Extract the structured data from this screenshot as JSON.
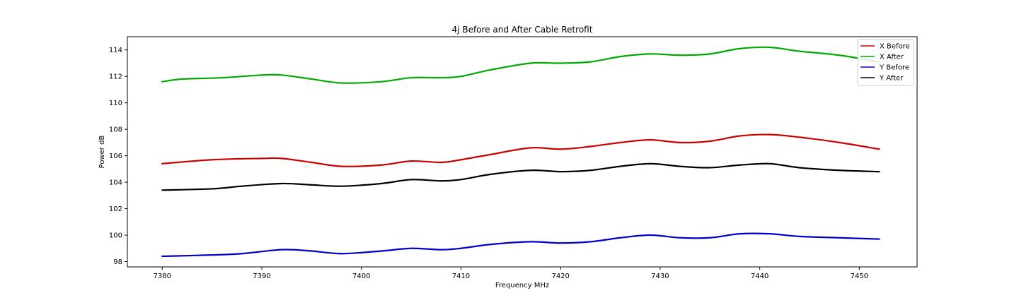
{
  "chart_data": {
    "type": "line",
    "title": "4j Before and After Cable Retrofit",
    "xlabel": "Frequency MHz",
    "ylabel": "Power dB",
    "xlim": [
      7376.5,
      7455.8
    ],
    "ylim": [
      97.6,
      115.0
    ],
    "xticks": [
      7380,
      7390,
      7400,
      7410,
      7420,
      7430,
      7440,
      7450
    ],
    "yticks": [
      98,
      100,
      102,
      104,
      106,
      108,
      110,
      112,
      114
    ],
    "grid": false,
    "legend_position": "top-right",
    "series": [
      {
        "name": "X Before",
        "color": "#cc0000",
        "x": [
          7380,
          7385,
          7390,
          7392,
          7395,
          7398,
          7402,
          7405,
          7408,
          7410,
          7413,
          7417,
          7420,
          7423,
          7426,
          7429,
          7432,
          7435,
          7438,
          7441,
          7444,
          7448,
          7452
        ],
        "y": [
          105.4,
          105.7,
          105.8,
          105.8,
          105.5,
          105.2,
          105.3,
          105.6,
          105.5,
          105.7,
          106.1,
          106.6,
          106.5,
          106.7,
          107.0,
          107.2,
          107.0,
          107.1,
          107.5,
          107.6,
          107.4,
          107.0,
          106.5
        ]
      },
      {
        "name": "X After",
        "color": "#00aa00",
        "x": [
          7380,
          7382,
          7386,
          7390,
          7392,
          7395,
          7398,
          7402,
          7405,
          7408,
          7410,
          7413,
          7417,
          7420,
          7423,
          7426,
          7429,
          7432,
          7435,
          7438,
          7441,
          7444,
          7448,
          7452
        ],
        "y": [
          111.6,
          111.8,
          111.9,
          112.1,
          112.1,
          111.8,
          111.5,
          111.6,
          111.9,
          111.9,
          112.0,
          112.5,
          113.0,
          113.0,
          113.1,
          113.5,
          113.7,
          113.6,
          113.7,
          114.1,
          114.2,
          113.9,
          113.6,
          113.1
        ]
      },
      {
        "name": "Y Before",
        "color": "#0000cc",
        "x": [
          7380,
          7385,
          7388,
          7392,
          7395,
          7398,
          7402,
          7405,
          7408,
          7410,
          7413,
          7417,
          7420,
          7423,
          7426,
          7429,
          7432,
          7435,
          7438,
          7441,
          7444,
          7448,
          7452
        ],
        "y": [
          98.4,
          98.5,
          98.6,
          98.9,
          98.8,
          98.6,
          98.8,
          99.0,
          98.9,
          99.0,
          99.3,
          99.5,
          99.4,
          99.5,
          99.8,
          100.0,
          99.8,
          99.8,
          100.1,
          100.1,
          99.9,
          99.8,
          99.7
        ]
      },
      {
        "name": "Y After",
        "color": "#000000",
        "x": [
          7380,
          7385,
          7388,
          7392,
          7395,
          7398,
          7402,
          7405,
          7408,
          7410,
          7413,
          7417,
          7420,
          7423,
          7426,
          7429,
          7432,
          7435,
          7438,
          7441,
          7444,
          7448,
          7452
        ],
        "y": [
          103.4,
          103.5,
          103.7,
          103.9,
          103.8,
          103.7,
          103.9,
          104.2,
          104.1,
          104.2,
          104.6,
          104.9,
          104.8,
          104.9,
          105.2,
          105.4,
          105.2,
          105.1,
          105.3,
          105.4,
          105.1,
          104.9,
          104.8
        ]
      }
    ]
  }
}
